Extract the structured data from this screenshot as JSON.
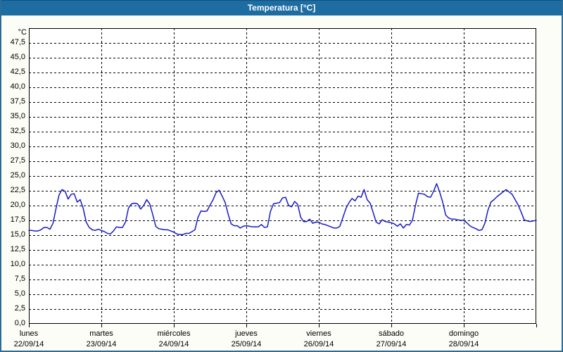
{
  "window": {
    "title": "Temperatura [°C]",
    "colors": {
      "titlebar_bg": "#1d6da3",
      "titlebar_text": "#ffffff",
      "frame_border": "#2b6d98",
      "content_bg": "#fbfdf6",
      "plot_bg": "#ffffff",
      "grid_color": "#000000",
      "line_color": "#1a1ac8"
    }
  },
  "chart_data": {
    "type": "line",
    "title": "Temperatura [°C]",
    "unit_label": "°C",
    "ylabel": "Temperatura",
    "ylim": [
      0,
      50
    ],
    "ytick_step": 2.5,
    "ytick_labels": [
      "0,0",
      "2,5",
      "5,0",
      "7,5",
      "10,0",
      "12,5",
      "15,0",
      "17,5",
      "20,0",
      "22,5",
      "25,0",
      "27,5",
      "30,0",
      "32,5",
      "35,0",
      "37,5",
      "40,0",
      "42,5",
      "45,0",
      "47,5"
    ],
    "grid": "dashed",
    "legend_position": "none",
    "x_axis_note": "7 days, hourly samples, day labels centered on each day-start gridline",
    "days": [
      {
        "name": "lunes",
        "date": "22/09/14",
        "hourly": [
          15.8,
          15.8,
          15.7,
          15.7,
          15.9,
          16.3,
          16.3,
          16.0,
          17.0,
          19.5,
          21.8,
          22.7,
          22.4,
          21.1,
          21.9,
          22.0,
          20.6,
          21.0,
          19.5,
          17.2,
          16.3,
          15.9,
          15.8,
          16.0
        ]
      },
      {
        "name": "martes",
        "date": "23/09/14",
        "hourly": [
          15.8,
          15.6,
          15.3,
          15.2,
          15.7,
          16.4,
          16.3,
          16.3,
          17.2,
          19.6,
          20.3,
          20.4,
          20.3,
          19.4,
          20.0,
          21.0,
          20.3,
          18.5,
          16.5,
          16.1,
          16.0,
          15.9,
          15.9,
          15.7
        ]
      },
      {
        "name": "miércoles",
        "date": "24/09/14",
        "hourly": [
          15.5,
          15.2,
          15.1,
          15.1,
          15.3,
          15.3,
          15.6,
          15.9,
          18.0,
          19.1,
          19.0,
          19.1,
          20.1,
          21.0,
          22.2,
          22.6,
          21.6,
          20.5,
          18.5,
          16.9,
          16.6,
          16.6,
          16.2,
          16.5
        ]
      },
      {
        "name": "jueves",
        "date": "25/09/14",
        "hourly": [
          16.6,
          16.5,
          16.4,
          16.4,
          16.4,
          16.8,
          16.3,
          16.4,
          19.0,
          20.3,
          20.4,
          20.5,
          21.3,
          21.4,
          20.0,
          19.8,
          20.7,
          20.2,
          18.0,
          17.3,
          17.3,
          17.7,
          17.0,
          17.2
        ]
      },
      {
        "name": "viernes",
        "date": "26/09/14",
        "hourly": [
          17.2,
          16.9,
          16.8,
          16.6,
          16.4,
          16.2,
          16.2,
          16.5,
          18.0,
          19.5,
          20.5,
          21.2,
          20.8,
          21.6,
          21.4,
          22.7,
          21.0,
          20.4,
          18.8,
          17.2,
          16.9,
          17.6,
          17.3,
          17.2
        ]
      },
      {
        "name": "sábado",
        "date": "27/09/14",
        "hourly": [
          17.1,
          16.9,
          16.5,
          16.9,
          16.2,
          16.8,
          16.7,
          17.5,
          20.0,
          22.1,
          22.0,
          21.9,
          21.5,
          21.4,
          22.4,
          23.7,
          22.3,
          20.6,
          18.4,
          17.9,
          17.7,
          17.7,
          17.6,
          17.5
        ]
      },
      {
        "name": "domingo",
        "date": "28/09/14",
        "hourly": [
          17.5,
          17.1,
          16.6,
          16.3,
          16.1,
          15.8,
          15.9,
          17.0,
          19.2,
          20.6,
          21.0,
          21.5,
          21.9,
          22.3,
          22.7,
          22.3,
          21.9,
          21.0,
          20.1,
          18.9,
          17.6,
          17.4,
          17.3,
          17.4
        ]
      }
    ],
    "closing_value": 17.5
  }
}
